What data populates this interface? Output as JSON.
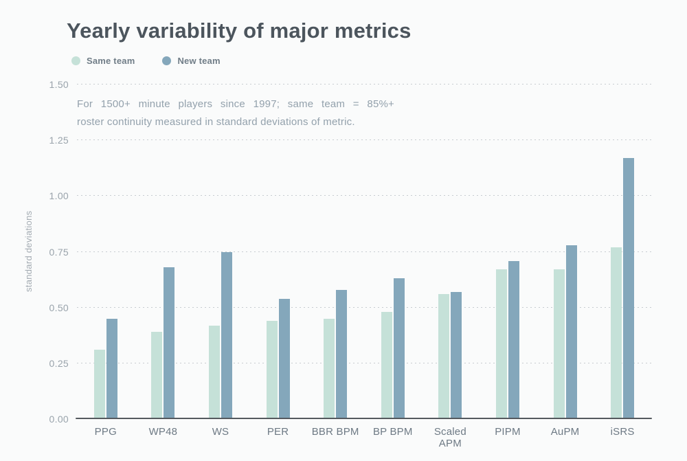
{
  "annotation": {
    "line1": "For 1500+ minute players since 1997; same team = 85%+",
    "line2": "roster continuity measured in standard deviations of metric."
  },
  "chart_data": {
    "type": "bar",
    "title": "Yearly variability of major metrics",
    "ylabel": "standard deviations",
    "xlabel": "",
    "ylim": [
      0,
      1.5
    ],
    "grid": "dotted-horizontal",
    "legend_position": "top-left",
    "yticks": [
      {
        "label": "1.50",
        "value": 1.5
      },
      {
        "label": "1.25",
        "value": 1.25
      },
      {
        "label": "1.00",
        "value": 1.0
      },
      {
        "label": "0.75",
        "value": 0.75
      },
      {
        "label": "0.50",
        "value": 0.5
      },
      {
        "label": "0.25",
        "value": 0.25
      },
      {
        "label": "0.00",
        "value": 0.0
      }
    ],
    "categories": [
      "PPG",
      "WP48",
      "WS",
      "PER",
      "BBR BPM",
      "BP BPM",
      "Scaled APM",
      "PIPM",
      "AuPM",
      "iSRS"
    ],
    "series": [
      {
        "name": "Same team",
        "color": "#c5e1d8",
        "values": [
          0.31,
          0.39,
          0.42,
          0.44,
          0.45,
          0.48,
          0.56,
          0.67,
          0.67,
          0.77
        ]
      },
      {
        "name": "New team",
        "color": "#84a7bb",
        "values": [
          0.45,
          0.68,
          0.75,
          0.54,
          0.58,
          0.63,
          0.57,
          0.71,
          0.78,
          1.17
        ]
      }
    ],
    "colors": {
      "background": "#fafbfb",
      "title_text": "#4c555d",
      "legend_text": "#707d87",
      "axis_tick_text": "#99a3ab",
      "x_label_text": "#6d7984",
      "annotation_text": "#93a1ac",
      "gridline": "#c7ccd0",
      "axis_line": "#54595e"
    }
  }
}
